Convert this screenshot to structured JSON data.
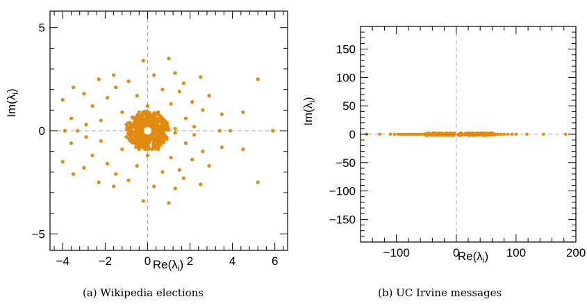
{
  "captions": {
    "a": "(a)  Wikipedia elections",
    "b": "(b)  UC Irvine messages"
  },
  "styles": {
    "point_color": "#e08a10",
    "frame_color": "#000000",
    "guide_color": "#aaaaaa"
  },
  "chart_data": [
    {
      "type": "scatter",
      "title": "",
      "xlabel": "Re(λi)",
      "ylabel": "Im(λi)",
      "xlim": [
        -4.6,
        6.6
      ],
      "ylim": [
        -5.8,
        5.8
      ],
      "xticks": [
        -4,
        -2,
        0,
        2,
        4,
        6
      ],
      "xtick_labels": [
        "−4",
        "−2",
        "0",
        "2",
        "4",
        "6"
      ],
      "yticks": [
        -5,
        0,
        5
      ],
      "ytick_labels": [
        "−5",
        "0",
        "5"
      ],
      "grid": false,
      "reference_lines": [
        "x=0",
        "y=0"
      ],
      "series": [
        {
          "points": [
            [
              -3.9,
              0.0
            ],
            [
              5.9,
              0.0
            ],
            [
              5.2,
              2.5
            ],
            [
              5.2,
              -2.5
            ],
            [
              4.5,
              0.9
            ],
            [
              4.5,
              -0.9
            ],
            [
              3.9,
              0.0
            ],
            [
              3.4,
              0.0
            ],
            [
              3.5,
              0.8
            ],
            [
              3.5,
              -0.8
            ],
            [
              2.9,
              1.7
            ],
            [
              2.9,
              -1.7
            ],
            [
              2.5,
              2.6
            ],
            [
              2.5,
              -2.6
            ],
            [
              2.6,
              1.0
            ],
            [
              2.6,
              -1.0
            ],
            [
              1.3,
              2.8
            ],
            [
              1.3,
              -2.8
            ],
            [
              1.0,
              3.5
            ],
            [
              1.0,
              -3.5
            ],
            [
              -0.2,
              3.4
            ],
            [
              -0.2,
              -3.4
            ],
            [
              -1.6,
              2.7
            ],
            [
              -1.6,
              -2.7
            ],
            [
              -2.3,
              2.5
            ],
            [
              -2.3,
              -2.5
            ],
            [
              -3.0,
              1.8
            ],
            [
              -3.0,
              -1.8
            ],
            [
              -3.5,
              2.1
            ],
            [
              -3.5,
              -2.1
            ],
            [
              -4.0,
              1.5
            ],
            [
              -4.0,
              -1.5
            ],
            [
              -3.6,
              0.6
            ],
            [
              -3.6,
              -0.6
            ],
            [
              -3.3,
              0.0
            ],
            [
              -2.9,
              0.3
            ],
            [
              -2.9,
              -0.3
            ],
            [
              -2.6,
              1.2
            ],
            [
              -2.6,
              -1.2
            ],
            [
              -2.2,
              0.5
            ],
            [
              -2.2,
              -0.5
            ],
            [
              -1.9,
              1.6
            ],
            [
              -1.9,
              -1.6
            ],
            [
              -1.5,
              2.1
            ],
            [
              -1.5,
              -2.1
            ],
            [
              -1.2,
              0.9
            ],
            [
              -1.2,
              -0.9
            ],
            [
              -0.9,
              2.4
            ],
            [
              -0.9,
              -2.4
            ],
            [
              -0.5,
              1.7
            ],
            [
              -0.5,
              -1.7
            ],
            [
              0.3,
              2.7
            ],
            [
              0.3,
              -2.7
            ],
            [
              0.7,
              2.0
            ],
            [
              0.7,
              -2.0
            ],
            [
              1.1,
              1.3
            ],
            [
              1.1,
              -1.3
            ],
            [
              1.5,
              1.9
            ],
            [
              1.5,
              -1.9
            ],
            [
              1.8,
              0.6
            ],
            [
              1.8,
              -0.6
            ],
            [
              2.1,
              1.4
            ],
            [
              2.1,
              -1.4
            ],
            [
              2.2,
              0.2
            ],
            [
              2.2,
              -0.2
            ],
            [
              1.7,
              2.3
            ],
            [
              1.7,
              -2.3
            ],
            [
              -1.0,
              0.3
            ],
            [
              -1.0,
              -0.3
            ],
            [
              0.9,
              0.4
            ],
            [
              0.9,
              -0.4
            ],
            [
              0.0,
              1.2
            ],
            [
              0.0,
              -1.2
            ],
            [
              -0.4,
              0.9
            ],
            [
              -0.4,
              -0.9
            ],
            [
              0.5,
              0.9
            ],
            [
              0.5,
              -0.9
            ],
            [
              1.3,
              0.1
            ],
            [
              1.3,
              -0.1
            ]
          ],
          "dense_core": {
            "center": [
              0,
              0
            ],
            "radius": 0.95,
            "hole_radius": 0.12
          }
        }
      ]
    },
    {
      "type": "scatter",
      "title": "",
      "xlabel": "Re(λi)",
      "ylabel": "Im(λi)",
      "xlim": [
        -160,
        200
      ],
      "ylim": [
        -190,
        190
      ],
      "xticks": [
        -100,
        0,
        100,
        200
      ],
      "xtick_labels": [
        "−100",
        "0",
        "100",
        "200"
      ],
      "yticks": [
        -150,
        -100,
        -50,
        0,
        50,
        100,
        150
      ],
      "ytick_labels": [
        "−150",
        "−100",
        "−50",
        "0",
        "50",
        "100",
        "150"
      ],
      "grid": false,
      "reference_lines": [
        "x=0",
        "y=0"
      ],
      "series": [
        {
          "points": [
            [
              -150,
              0
            ],
            [
              -128,
              0
            ],
            [
              -110,
              0
            ],
            [
              -103,
              0
            ],
            [
              -97,
              0
            ],
            [
              -93,
              0
            ],
            [
              -89,
              0
            ],
            [
              -85,
              0
            ],
            [
              -81,
              0
            ],
            [
              -78,
              0
            ],
            [
              -74,
              0
            ],
            [
              -70,
              0
            ],
            [
              -66,
              0
            ],
            [
              -62,
              0
            ],
            [
              -58,
              0
            ],
            [
              -54,
              0
            ],
            [
              -50,
              0
            ],
            [
              -46,
              0
            ],
            [
              -42,
              0
            ],
            [
              -38,
              0
            ],
            [
              -34,
              0
            ],
            [
              -30,
              0
            ],
            [
              -26,
              0
            ],
            [
              -22,
              0
            ],
            [
              -18,
              0
            ],
            [
              -14,
              0
            ],
            [
              -10,
              0
            ],
            [
              -6,
              0
            ],
            [
              6,
              0
            ],
            [
              10,
              0
            ],
            [
              14,
              0
            ],
            [
              18,
              0
            ],
            [
              22,
              0
            ],
            [
              26,
              0
            ],
            [
              30,
              0
            ],
            [
              34,
              0
            ],
            [
              38,
              0
            ],
            [
              42,
              0
            ],
            [
              46,
              0
            ],
            [
              50,
              0
            ],
            [
              54,
              0
            ],
            [
              58,
              0
            ],
            [
              62,
              0
            ],
            [
              66,
              0
            ],
            [
              70,
              0
            ],
            [
              75,
              0
            ],
            [
              80,
              0
            ],
            [
              86,
              0
            ],
            [
              93,
              0
            ],
            [
              100,
              0
            ],
            [
              118,
              0
            ],
            [
              146,
              0
            ],
            [
              183,
              0
            ]
          ],
          "dense_bands": [
            {
              "x_range": [
                -52,
                -3
              ],
              "y_spread": 4
            },
            {
              "x_range": [
                3,
                62
              ],
              "y_spread": 4
            }
          ]
        }
      ]
    }
  ]
}
